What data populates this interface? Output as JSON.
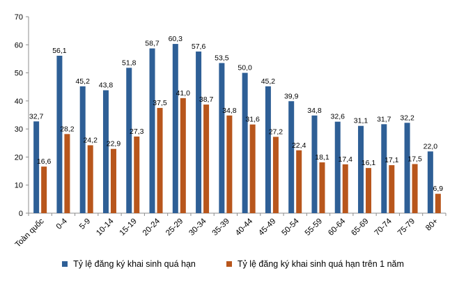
{
  "chart_data": {
    "type": "bar",
    "categories": [
      "Toàn quốc",
      "0-4",
      "5-9",
      "10-14",
      "15-19",
      "20-24",
      "25-29",
      "30-34",
      "35-39",
      "40-44",
      "45-49",
      "50-54",
      "55-59",
      "60-64",
      "65-69",
      "70-74",
      "75-79",
      "80+"
    ],
    "series": [
      {
        "name": "Tỷ lệ đăng ký khai sinh quá hạn",
        "color": "#2E5F96",
        "values": [
          32.7,
          56.1,
          45.2,
          43.8,
          51.8,
          58.7,
          60.3,
          57.6,
          53.5,
          50.0,
          45.2,
          39.9,
          34.8,
          32.6,
          31.1,
          31.7,
          32.2,
          22.0
        ],
        "labels": [
          "32,7",
          "56,1",
          "45,2",
          "43,8",
          "51,8",
          "58,7",
          "60,3",
          "57,6",
          "53,5",
          "50,0",
          "45,2",
          "39,9",
          "34,8",
          "32,6",
          "31,1",
          "31,7",
          "32,2",
          "22,0"
        ]
      },
      {
        "name": "Tỷ lệ đăng ký khai sinh quá hạn trên 1 năm",
        "color": "#B8561C",
        "values": [
          16.6,
          28.2,
          24.2,
          22.9,
          27.3,
          37.5,
          41.0,
          38.7,
          34.8,
          31.6,
          27.2,
          22.4,
          18.1,
          17.4,
          16.1,
          17.1,
          17.5,
          6.9
        ],
        "labels": [
          "16,6",
          "28,2",
          "24,2",
          "22,9",
          "27,3",
          "37,5",
          "41,0",
          "38,7",
          "34,8",
          "31,6",
          "27,2",
          "22,4",
          "18,1",
          "17,4",
          "16,1",
          "17,1",
          "17,5",
          "6,9"
        ]
      }
    ],
    "ylim": [
      0,
      70
    ],
    "yticks": [
      "0",
      "10",
      "20",
      "30",
      "40",
      "50",
      "60",
      "70"
    ],
    "xlabel": "",
    "ylabel": "",
    "title": "",
    "legend_position": "bottom",
    "grid": false
  }
}
